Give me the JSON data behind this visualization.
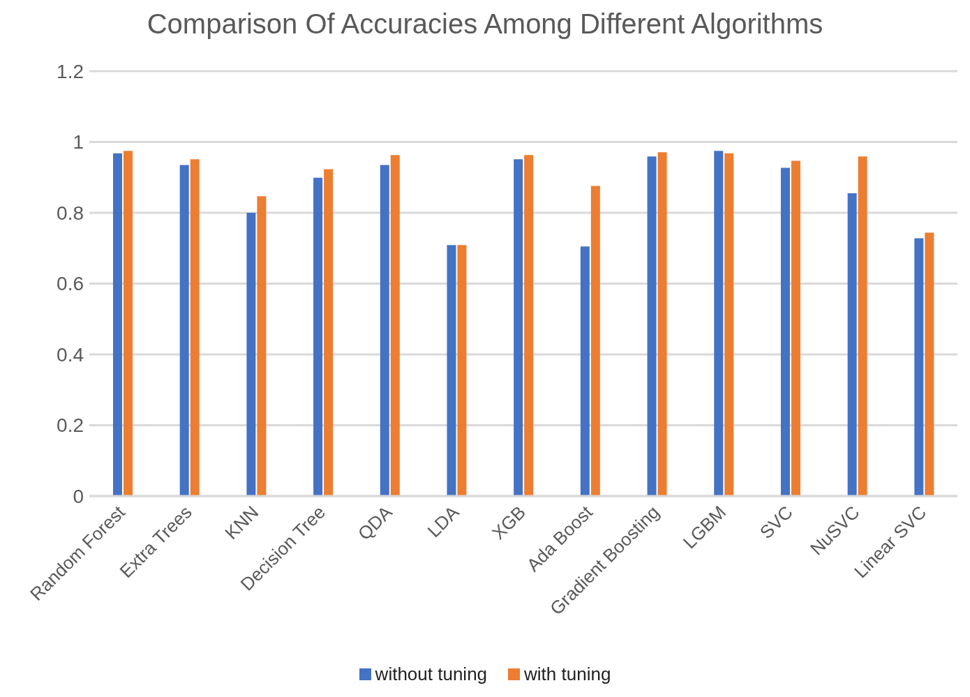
{
  "chart_data": {
    "type": "bar",
    "title": "Comparison Of Accuracies Among Different Algorithms",
    "categories": [
      "Random Forest",
      "Extra Trees",
      "KNN",
      "Decision Tree",
      "QDA",
      "LDA",
      "XGB",
      "Ada Boost",
      "Gradient Boosting",
      "LGBM",
      "SVC",
      "NuSVC",
      "Linear SVC"
    ],
    "series": [
      {
        "name": "without tuning",
        "color": "#4472c4",
        "values": [
          0.968,
          0.935,
          0.8,
          0.899,
          0.935,
          0.709,
          0.951,
          0.705,
          0.959,
          0.975,
          0.927,
          0.855,
          0.728
        ]
      },
      {
        "name": "with tuning",
        "color": "#ed7d31",
        "values": [
          0.975,
          0.951,
          0.847,
          0.923,
          0.963,
          0.709,
          0.963,
          0.876,
          0.971,
          0.968,
          0.947,
          0.959,
          0.744
        ]
      }
    ],
    "ylim": [
      0,
      1.2
    ],
    "yticks": [
      0,
      0.2,
      0.4,
      0.6,
      0.8,
      1,
      1.2
    ],
    "grid": "y",
    "legend": "bottom"
  }
}
